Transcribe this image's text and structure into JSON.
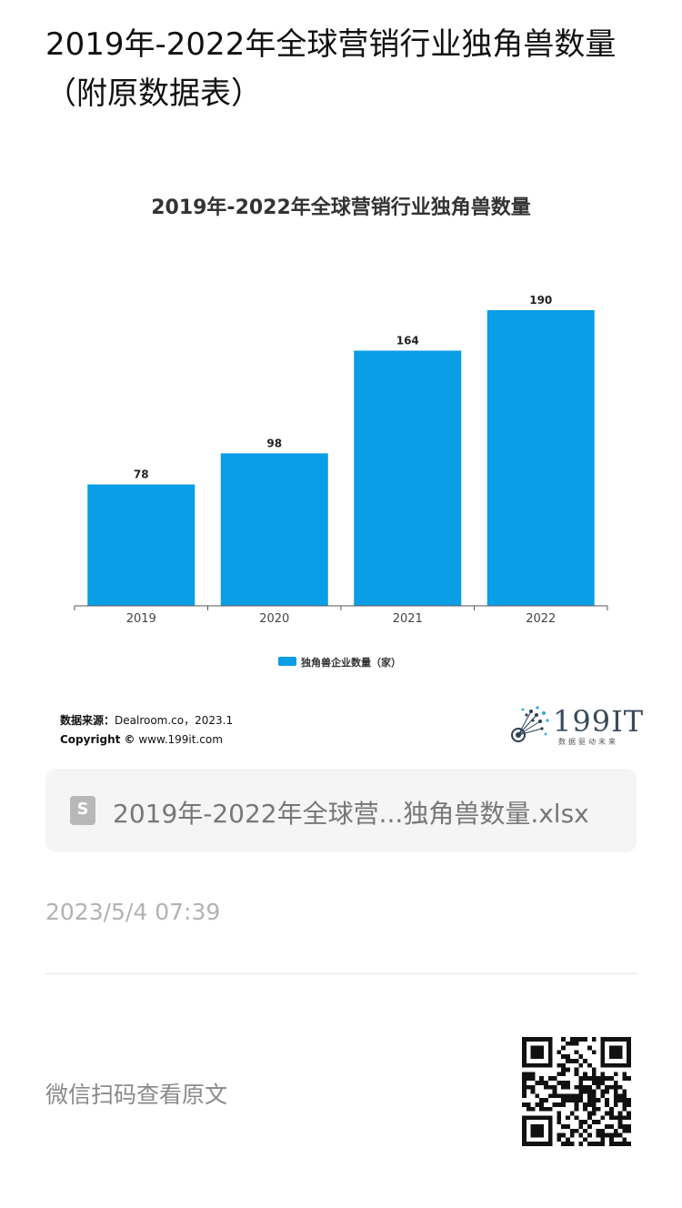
{
  "article": {
    "title": "2019年-2022年全球营销行业独角兽数量（附原数据表）",
    "timestamp": "2023/5/4 07:39",
    "qr_label": "微信扫码查看原文"
  },
  "file_card": {
    "icon": "spreadsheet-file-icon",
    "icon_letter": "S",
    "name": "2019年-2022年全球营...独角兽数量.xlsx"
  },
  "source": {
    "label": "数据来源：",
    "value": "Dealroom.co，2023.1",
    "copyright_label": "Copyright ©",
    "copyright_value": " www.199it.com"
  },
  "brand": {
    "text": "199IT",
    "sub": "数据驱动未来"
  },
  "colors": {
    "bar": "#0a9ee6",
    "axis": "#555555"
  },
  "chart_data": {
    "type": "bar",
    "title": "2019年-2022年全球营销行业独角兽数量",
    "categories": [
      "2019",
      "2020",
      "2021",
      "2022"
    ],
    "series": [
      {
        "name": "独角兽企业数量（家）",
        "values": [
          78,
          98,
          164,
          190
        ]
      }
    ],
    "ylim": [
      0,
      200
    ],
    "grid": false,
    "legend": "bottom-center",
    "data_labels": true
  }
}
